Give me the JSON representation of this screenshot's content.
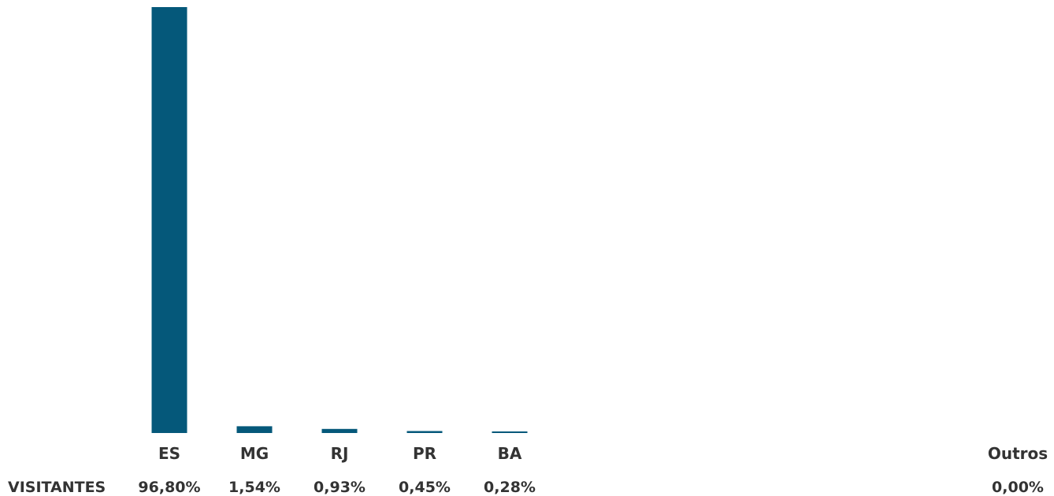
{
  "chart_data": {
    "type": "bar",
    "categories": [
      "ES",
      "MG",
      "RJ",
      "PR",
      "BA",
      "Outros"
    ],
    "values": [
      96.8,
      1.54,
      0.93,
      0.45,
      0.28,
      0.0
    ],
    "value_labels": [
      "96,80%",
      "1,54%",
      "0,93%",
      "0,45%",
      "0,28%",
      "0,00%"
    ],
    "table_row_label": "VISITANTES",
    "bar_color": "#05587A",
    "ylim": [
      0,
      96.8
    ]
  }
}
